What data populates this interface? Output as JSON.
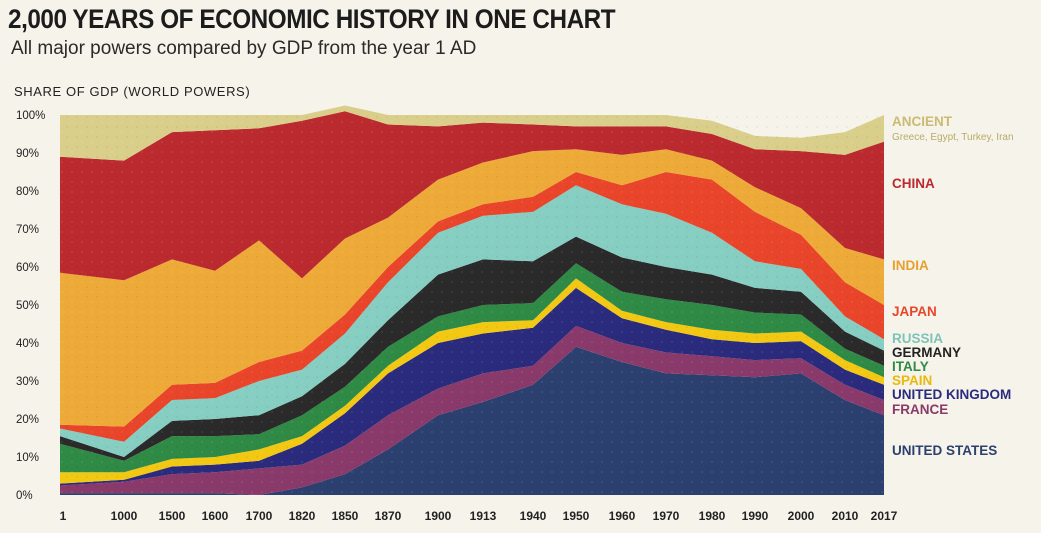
{
  "title": "2,000 YEARS OF ECONOMIC HISTORY IN ONE CHART",
  "subtitle": "All major powers compared by GDP from the year 1 AD",
  "colors": {
    "united_states": "#2c4070",
    "france": "#8a3a6a",
    "united_kingdom": "#2b2b7e",
    "spain": "#f2c813",
    "italy": "#2f8a45",
    "germany": "#2a2a2a",
    "russia": "#86cdc2",
    "japan": "#e8452a",
    "india": "#eeaa38",
    "china": "#bb2a2e",
    "ancient": "#d9cf8a"
  },
  "chart_data": {
    "type": "area",
    "stacked": true,
    "percent": true,
    "ylabel": "SHARE OF GDP (WORLD POWERS)",
    "ylim": [
      0,
      100
    ],
    "yticks": [
      "0%",
      "10%",
      "20%",
      "30%",
      "40%",
      "50%",
      "60%",
      "70%",
      "80%",
      "90%",
      "100%"
    ],
    "categories": [
      "1",
      "1000",
      "1500",
      "1600",
      "1700",
      "1820",
      "1850",
      "1870",
      "1900",
      "1913",
      "1940",
      "1950",
      "1960",
      "1970",
      "1980",
      "1990",
      "2000",
      "2010",
      "2017"
    ],
    "series": [
      {
        "name": "UNITED STATES",
        "values": [
          0.5,
          0.5,
          0.5,
          0.5,
          0,
          2,
          5.5,
          12,
          21,
          24.5,
          29,
          39,
          35,
          32,
          31.5,
          31,
          32,
          25,
          21
        ]
      },
      {
        "name": "FRANCE",
        "values": [
          2,
          3,
          5,
          5.5,
          7,
          6,
          7.5,
          9,
          7,
          7.5,
          5,
          5.5,
          5,
          5.5,
          5,
          4.5,
          4,
          4,
          4
        ]
      },
      {
        "name": "UNITED KINGDOM",
        "values": [
          0.5,
          0.5,
          2,
          2,
          2,
          5.5,
          8.5,
          11,
          12,
          10.5,
          10,
          10,
          6.5,
          6,
          4.5,
          4.5,
          4.5,
          4,
          4
        ]
      },
      {
        "name": "SPAIN",
        "values": [
          3,
          2,
          2,
          2,
          3,
          2,
          2,
          2,
          3,
          3,
          2,
          2.5,
          2,
          2,
          2.5,
          2.5,
          2.5,
          2.5,
          2
        ]
      },
      {
        "name": "ITALY",
        "values": [
          7.5,
          3,
          6,
          5.5,
          4,
          5.5,
          5,
          5,
          4,
          4.5,
          4.5,
          4,
          5,
          6,
          6.5,
          5.5,
          4.5,
          3,
          3
        ]
      },
      {
        "name": "GERMANY",
        "values": [
          2,
          1,
          4,
          4.5,
          5,
          5,
          6,
          7,
          11,
          12,
          11,
          7,
          9,
          8.5,
          8,
          6.5,
          6,
          4.5,
          4
        ]
      },
      {
        "name": "RUSSIA",
        "values": [
          2,
          4,
          5.5,
          5.5,
          9,
          7,
          8,
          10,
          11,
          11.5,
          13,
          13.5,
          14,
          14,
          11,
          7,
          6,
          4,
          3
        ]
      },
      {
        "name": "JAPAN",
        "values": [
          1,
          4,
          4,
          4,
          5,
          5,
          5,
          4,
          3,
          3,
          4,
          3.5,
          5,
          11,
          14,
          13,
          9,
          9,
          9
        ]
      },
      {
        "name": "INDIA",
        "values": [
          40,
          38.5,
          33,
          29.5,
          32,
          19,
          20,
          13,
          11,
          11,
          12,
          6,
          8,
          6,
          5,
          6.5,
          7,
          9,
          12
        ]
      },
      {
        "name": "CHINA",
        "values": [
          30.5,
          31.5,
          33.5,
          37,
          29.5,
          41.5,
          33.5,
          24.5,
          14,
          10.5,
          7,
          6,
          7.5,
          6,
          7,
          10,
          15,
          24.5,
          31
        ]
      },
      {
        "name": "ANCIENT",
        "note": "Greece, Egypt, Turkey, Iran",
        "values": [
          11,
          12,
          4.5,
          4,
          3.5,
          1.5,
          1.5,
          2.5,
          3,
          2,
          2.5,
          3,
          3,
          3,
          3.5,
          3.5,
          3.5,
          6,
          7
        ]
      }
    ]
  }
}
